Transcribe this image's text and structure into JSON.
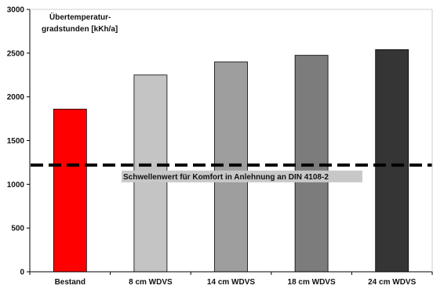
{
  "chart_data": {
    "type": "bar",
    "title_lines": [
      "Übertemperatur-",
      "gradstunden [kKh/a]"
    ],
    "xlabel": "",
    "ylabel": "",
    "categories": [
      "Bestand",
      "8 cm WDVS",
      "14 cm WDVS",
      "18 cm WDVS",
      "24 cm WDVS"
    ],
    "values": [
      1860,
      2250,
      2400,
      2475,
      2540
    ],
    "bar_colors": [
      "#ff0000",
      "#c4c4c4",
      "#9e9e9e",
      "#7c7c7c",
      "#353535"
    ],
    "ylim": [
      0,
      3000
    ],
    "yticks": [
      0,
      500,
      1000,
      1500,
      2000,
      2500,
      3000
    ],
    "ytick_labels": [
      "0",
      "500",
      "1000",
      "1500",
      "2000",
      "2500",
      "3000"
    ],
    "grid": false,
    "threshold": {
      "value": 1220,
      "label": "Schwellenwert für Komfort in Anlehnung an DIN 4108-2",
      "style": "dashed",
      "color": "#000000",
      "label_background": "#c8c8c8"
    }
  }
}
